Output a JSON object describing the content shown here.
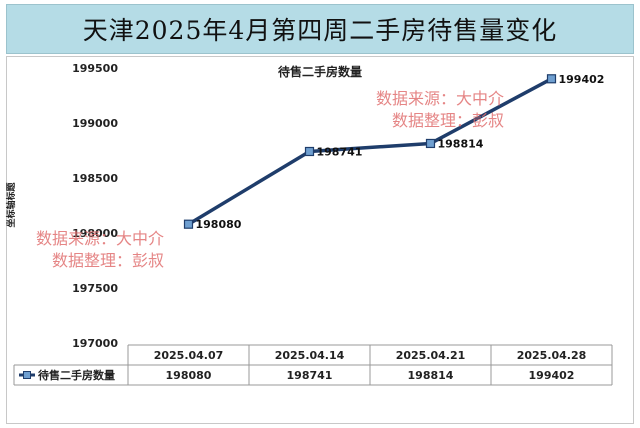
{
  "banner_title": "天津2025年4月第四周二手房待售量变化",
  "chart_data": {
    "type": "line",
    "title": "待售二手房数量",
    "xlabel": "",
    "ylabel": "坐标轴标题",
    "categories": [
      "2025.04.07",
      "2025.04.14",
      "2025.04.21",
      "2025.04.28"
    ],
    "series": [
      {
        "name": "待售二手房数量",
        "values": [
          198080,
          198741,
          198814,
          199402
        ],
        "color": "#1f3d6b"
      }
    ],
    "ylim": [
      197000,
      199500
    ],
    "yticks": [
      197000,
      197500,
      198000,
      198500,
      199000,
      199500
    ],
    "grid": false,
    "legend": "data-table",
    "data_table": true
  },
  "watermarks": [
    {
      "line1": "数据来源：大中介",
      "line2": "数据整理：彭叔"
    },
    {
      "line1": "数据来源：大中介",
      "line2": "数据整理：彭叔"
    }
  ],
  "colors": {
    "banner_bg": "#b5dce6",
    "line": "#1f3d6b",
    "marker_fill": "#6f9fd0",
    "watermark": "#e07070"
  }
}
